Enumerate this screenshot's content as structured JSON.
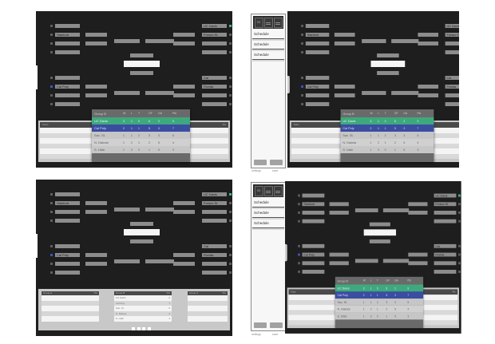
{
  "colors": {
    "green_highlight": "#3cb88d",
    "blue_highlight": "#4253c4",
    "panel_background": "#1e1e1e"
  },
  "bracket": {
    "left_teams": [
      {
        "label": "",
        "marker": "default"
      },
      {
        "label": "Stanford",
        "marker": "default"
      },
      {
        "label": "",
        "marker": "default"
      },
      {
        "label": "",
        "marker": "default"
      },
      {
        "label": "",
        "marker": "default"
      },
      {
        "label": "Cal Poly",
        "marker": "blue"
      },
      {
        "label": "",
        "marker": "default"
      },
      {
        "label": "",
        "marker": "default"
      }
    ],
    "right_teams": [
      {
        "label": "UC Davis",
        "marker": "green"
      },
      {
        "label": "Fresno St.",
        "marker": "default"
      },
      {
        "label": "",
        "marker": "default"
      },
      {
        "label": "",
        "marker": "default"
      },
      {
        "label": "Cal",
        "marker": "default"
      },
      {
        "label": "Florida",
        "marker": "default"
      },
      {
        "label": "",
        "marker": "default"
      },
      {
        "label": "",
        "marker": "default"
      }
    ]
  },
  "standings": {
    "title": "Group B",
    "columns": [
      "W",
      "L",
      "T",
      "GF",
      "GA",
      "Pts"
    ],
    "rows": [
      {
        "team": "UC Davis",
        "w": "3",
        "l": "1",
        "t": "0",
        "gf": "6",
        "ga": "2",
        "pts": "9",
        "hl": "green"
      },
      {
        "team": "Cal Poly",
        "w": "2",
        "l": "1",
        "t": "1",
        "gf": "5",
        "ga": "3",
        "pts": "7",
        "hl": "blue"
      },
      {
        "team": "Sac. St.",
        "w": "1",
        "l": "1",
        "t": "2",
        "gf": "3",
        "ga": "3",
        "pts": "5",
        "hl": ""
      },
      {
        "team": "N. Dakota",
        "w": "1",
        "l": "2",
        "t": "1",
        "gf": "2",
        "ga": "5",
        "pts": "4",
        "hl": ""
      },
      {
        "team": "S. Utah",
        "w": "1",
        "l": "3",
        "t": "0",
        "gf": "1",
        "ga": "5",
        "pts": "3",
        "hl": ""
      }
    ]
  },
  "wide_table": {
    "team_header": "Team",
    "pts_header": "Pts",
    "row_count": 6
  },
  "mini_tables": [
    {
      "title": "Group A",
      "pts_header": "Pts",
      "rows": []
    },
    {
      "title": "Group B",
      "pts_header": "Pts",
      "rows": [
        {
          "team": "UC Davis",
          "pts": "9"
        },
        {
          "team": "Cal Poly",
          "pts": "7"
        },
        {
          "team": "Sac. St.",
          "pts": "5"
        },
        {
          "team": "N. Dakota",
          "pts": "4"
        },
        {
          "team": "S. Utah",
          "pts": "3"
        }
      ]
    },
    {
      "title": "Group C",
      "pts_header": "Pts",
      "rows": []
    }
  ],
  "drawer": {
    "logo": "SD",
    "items": [
      "Schedule",
      "Schedule",
      "Schedule"
    ],
    "buttons": [
      {
        "label": "settings"
      },
      {
        "label": "save"
      }
    ]
  },
  "pagination_dots": 4
}
